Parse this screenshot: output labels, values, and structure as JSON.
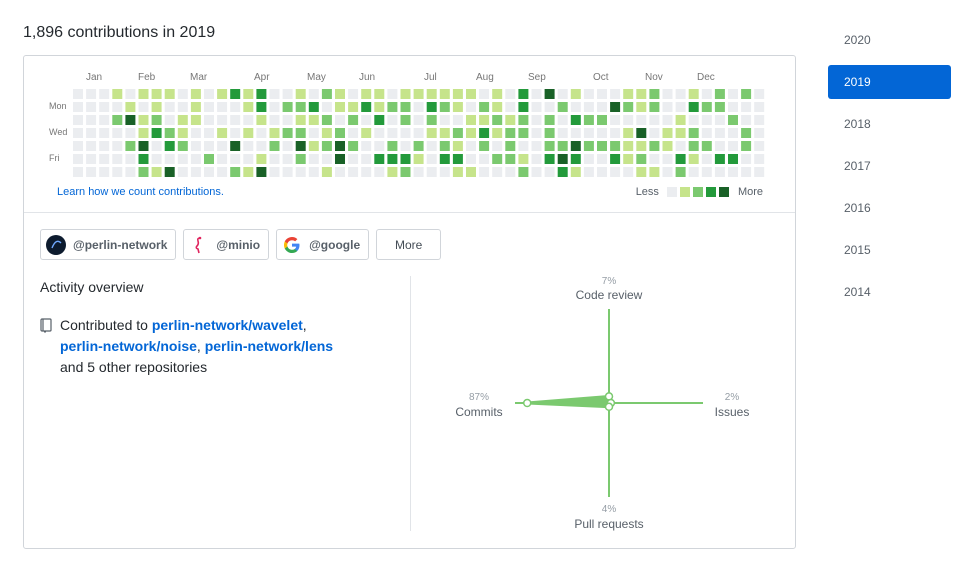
{
  "heading": "1,896 contributions in 2019",
  "calendar": {
    "months": [
      "Jan",
      "Feb",
      "Mar",
      "Apr",
      "May",
      "Jun",
      "Jul",
      "Aug",
      "Sep",
      "Oct",
      "Nov",
      "Dec"
    ],
    "days": [
      "Mon",
      "Wed",
      "Fri"
    ],
    "learn_link": "Learn how we count contributions.",
    "legend_less": "Less",
    "legend_more": "More",
    "colors": [
      "#ebedf0",
      "#c6e48b",
      "#7bc96f",
      "#239a3b",
      "#196127"
    ]
  },
  "orgs": [
    {
      "label": "@perlin-network",
      "icon": "perlin-logo-icon"
    },
    {
      "label": "@minio",
      "icon": "flamingo-logo-icon"
    },
    {
      "label": "@google",
      "icon": "google-logo-icon"
    }
  ],
  "more_label": "More",
  "activity": {
    "title": "Activity overview",
    "prefix": "Contributed to ",
    "repo1": "perlin-network/wavelet",
    "sep1": ",",
    "repo2": "perlin-network/noise",
    "sep2": ", ",
    "repo3": "perlin-network/lens",
    "suffix": "and 5 other repositories",
    "icon": "repo-book-icon"
  },
  "radar": {
    "code_review": {
      "label": "Code review",
      "pct": "7%",
      "value": 7
    },
    "issues": {
      "label": "Issues",
      "pct": "2%",
      "value": 2
    },
    "pull_requests": {
      "label": "Pull requests",
      "pct": "4%",
      "value": 4
    },
    "commits": {
      "label": "Commits",
      "pct": "87%",
      "value": 87
    }
  },
  "years": [
    "2020",
    "2019",
    "2018",
    "2017",
    "2016",
    "2015",
    "2014"
  ],
  "active_year": "2019"
}
